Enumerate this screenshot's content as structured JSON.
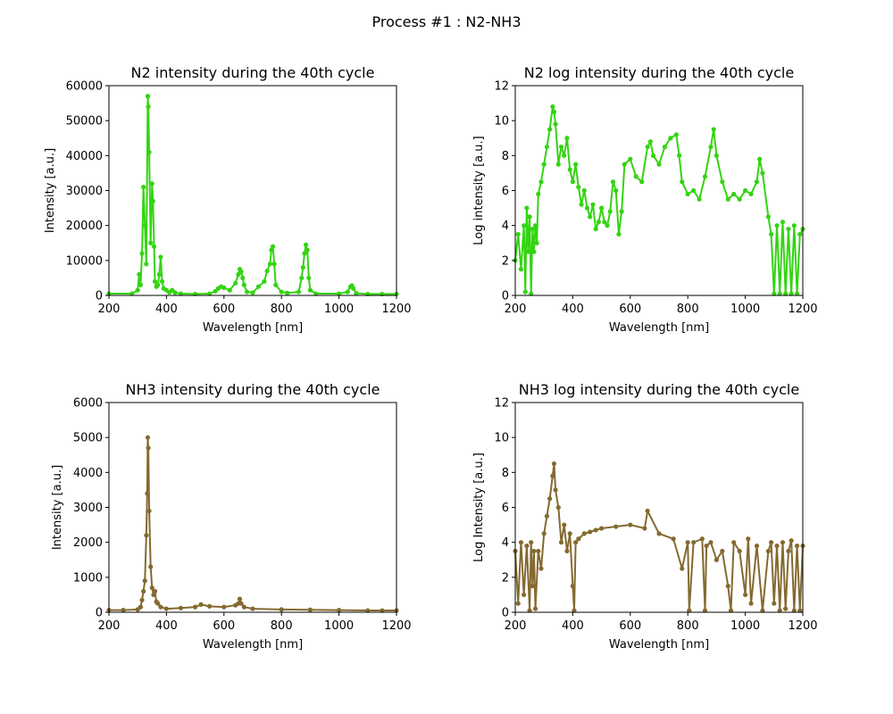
{
  "figure": {
    "suptitle": "Process #1 : N2-NH3",
    "colors": {
      "n2": "#33d411",
      "nh3": "#846a30"
    }
  },
  "chart_data": [
    {
      "type": "line",
      "title": "N2 intensity during the 40th cycle",
      "xlabel": "Wavelength [nm]",
      "ylabel": "Intensity [a.u.]",
      "xlim": [
        200,
        1200
      ],
      "ylim": [
        0,
        60000
      ],
      "xticks": [
        200,
        400,
        600,
        800,
        1000,
        1200
      ],
      "yticks": [
        0,
        10000,
        20000,
        30000,
        40000,
        50000,
        60000
      ],
      "markers": true,
      "series": [
        {
          "color": "#33d411",
          "x": [
            200,
            280,
            300,
            305,
            310,
            315,
            320,
            325,
            330,
            335,
            337,
            340,
            345,
            350,
            353,
            357,
            360,
            365,
            370,
            375,
            380,
            385,
            390,
            400,
            410,
            420,
            430,
            450,
            500,
            550,
            570,
            580,
            590,
            600,
            620,
            640,
            650,
            655,
            660,
            665,
            670,
            680,
            700,
            720,
            740,
            750,
            760,
            765,
            770,
            775,
            780,
            800,
            820,
            860,
            870,
            875,
            880,
            885,
            890,
            895,
            900,
            920,
            1000,
            1030,
            1040,
            1045,
            1050,
            1060,
            1100,
            1150,
            1200
          ],
          "y": [
            500,
            500,
            1500,
            6000,
            3000,
            12000,
            31000,
            20000,
            9000,
            57000,
            54000,
            41000,
            15000,
            32000,
            27000,
            14000,
            4000,
            2500,
            3000,
            6000,
            11000,
            4000,
            2000,
            1500,
            900,
            1500,
            800,
            500,
            400,
            500,
            1200,
            2000,
            2500,
            2200,
            1500,
            3500,
            6000,
            7500,
            6800,
            5000,
            3000,
            1000,
            800,
            2500,
            4000,
            7000,
            9000,
            13000,
            14000,
            9000,
            3000,
            1000,
            700,
            1000,
            5000,
            8000,
            12000,
            14500,
            13000,
            5000,
            1500,
            500,
            500,
            1000,
            2500,
            2800,
            2000,
            600,
            400,
            400,
            400
          ]
        }
      ]
    },
    {
      "type": "line",
      "title": "N2 log intensity during the 40th cycle",
      "xlabel": "Wavelength [nm]",
      "ylabel": "Log intensity [a.u.]",
      "xlim": [
        200,
        1200
      ],
      "ylim": [
        0,
        12
      ],
      "xticks": [
        200,
        400,
        600,
        800,
        1000,
        1200
      ],
      "yticks": [
        0,
        2,
        4,
        6,
        8,
        10,
        12
      ],
      "markers": true,
      "series": [
        {
          "color": "#33d411",
          "x": [
            200,
            210,
            220,
            230,
            235,
            240,
            245,
            250,
            255,
            260,
            265,
            270,
            275,
            280,
            290,
            300,
            310,
            320,
            330,
            335,
            340,
            350,
            360,
            370,
            380,
            390,
            400,
            410,
            420,
            430,
            440,
            450,
            460,
            470,
            480,
            490,
            500,
            510,
            520,
            530,
            540,
            550,
            560,
            570,
            580,
            600,
            620,
            640,
            660,
            670,
            680,
            700,
            720,
            740,
            760,
            770,
            780,
            800,
            820,
            840,
            860,
            880,
            890,
            900,
            920,
            940,
            960,
            980,
            1000,
            1020,
            1040,
            1050,
            1060,
            1080,
            1090,
            1100,
            1110,
            1120,
            1130,
            1140,
            1150,
            1160,
            1170,
            1180,
            1190,
            1200
          ],
          "y": [
            2.0,
            3.5,
            1.5,
            4.0,
            0.2,
            5.0,
            2.5,
            4.5,
            0.1,
            3.8,
            2.5,
            4.0,
            3.0,
            5.8,
            6.5,
            7.5,
            8.5,
            9.5,
            10.8,
            10.5,
            9.8,
            7.5,
            8.5,
            8.0,
            9.0,
            7.2,
            6.5,
            7.5,
            6.2,
            5.2,
            6.0,
            5.0,
            4.5,
            5.2,
            3.8,
            4.2,
            5.0,
            4.2,
            4.0,
            4.8,
            6.5,
            6.0,
            3.5,
            4.8,
            7.5,
            7.8,
            6.8,
            6.5,
            8.5,
            8.8,
            8.0,
            7.5,
            8.5,
            9.0,
            9.2,
            8.0,
            6.5,
            5.8,
            6.0,
            5.5,
            6.8,
            8.5,
            9.5,
            8.0,
            6.5,
            5.5,
            5.8,
            5.5,
            6.0,
            5.8,
            6.5,
            7.8,
            7.0,
            4.5,
            3.5,
            0.1,
            4.0,
            0.1,
            4.2,
            0.1,
            3.8,
            0.1,
            4.0,
            0.1,
            3.5,
            3.8
          ]
        }
      ]
    },
    {
      "type": "line",
      "title": "NH3 intensity during the 40th cycle",
      "xlabel": "Wavelength [nm]",
      "ylabel": "Intensity [a.u.]",
      "xlim": [
        200,
        1200
      ],
      "ylim": [
        0,
        6000
      ],
      "xticks": [
        200,
        400,
        600,
        800,
        1000,
        1200
      ],
      "yticks": [
        0,
        1000,
        2000,
        3000,
        4000,
        5000,
        6000
      ],
      "markers": true,
      "series": [
        {
          "color": "#846a30",
          "x": [
            200,
            250,
            300,
            310,
            315,
            320,
            325,
            330,
            333,
            335,
            337,
            340,
            345,
            350,
            355,
            360,
            365,
            370,
            380,
            400,
            450,
            500,
            520,
            550,
            600,
            640,
            650,
            655,
            660,
            670,
            700,
            800,
            900,
            1000,
            1100,
            1150,
            1200
          ],
          "y": [
            60,
            60,
            80,
            150,
            350,
            600,
            900,
            2200,
            3400,
            5000,
            4700,
            2900,
            1300,
            700,
            500,
            600,
            300,
            250,
            150,
            100,
            120,
            150,
            220,
            170,
            150,
            200,
            250,
            380,
            250,
            150,
            100,
            80,
            70,
            60,
            50,
            50,
            50
          ]
        }
      ]
    },
    {
      "type": "line",
      "title": "NH3 log intensity during the 40th cycle",
      "xlabel": "Wavelength [nm]",
      "ylabel": "Log Intensity [a.u.]",
      "xlim": [
        200,
        1200
      ],
      "ylim": [
        0,
        12
      ],
      "xticks": [
        200,
        400,
        600,
        800,
        1000,
        1200
      ],
      "yticks": [
        0,
        2,
        4,
        6,
        8,
        10,
        12
      ],
      "markers": true,
      "series": [
        {
          "color": "#846a30",
          "x": [
            200,
            210,
            220,
            230,
            240,
            250,
            255,
            260,
            265,
            270,
            280,
            290,
            300,
            310,
            320,
            330,
            335,
            340,
            350,
            360,
            370,
            380,
            390,
            400,
            405,
            410,
            420,
            440,
            460,
            480,
            500,
            550,
            600,
            650,
            660,
            700,
            750,
            780,
            800,
            805,
            820,
            850,
            860,
            865,
            880,
            900,
            920,
            940,
            950,
            960,
            980,
            1000,
            1010,
            1020,
            1040,
            1060,
            1080,
            1090,
            1100,
            1110,
            1120,
            1130,
            1140,
            1150,
            1160,
            1170,
            1180,
            1190,
            1200
          ],
          "y": [
            3.5,
            0.5,
            4.0,
            1.0,
            3.8,
            0.1,
            4.0,
            1.5,
            3.5,
            0.2,
            3.5,
            2.5,
            4.5,
            5.5,
            6.5,
            7.8,
            8.5,
            7.0,
            6.0,
            4.0,
            5.0,
            3.5,
            4.5,
            1.5,
            0.1,
            4.0,
            4.2,
            4.5,
            4.6,
            4.7,
            4.8,
            4.9,
            5.0,
            4.8,
            5.8,
            4.5,
            4.2,
            2.5,
            4.0,
            0.1,
            4.0,
            4.2,
            0.1,
            3.8,
            4.0,
            3.0,
            3.5,
            1.5,
            0.1,
            4.0,
            3.5,
            1.0,
            4.2,
            0.5,
            3.8,
            0.1,
            3.5,
            4.0,
            0.5,
            3.8,
            0.1,
            4.0,
            0.2,
            3.5,
            4.1,
            0.1,
            3.8,
            0.1,
            3.8
          ]
        }
      ]
    }
  ]
}
